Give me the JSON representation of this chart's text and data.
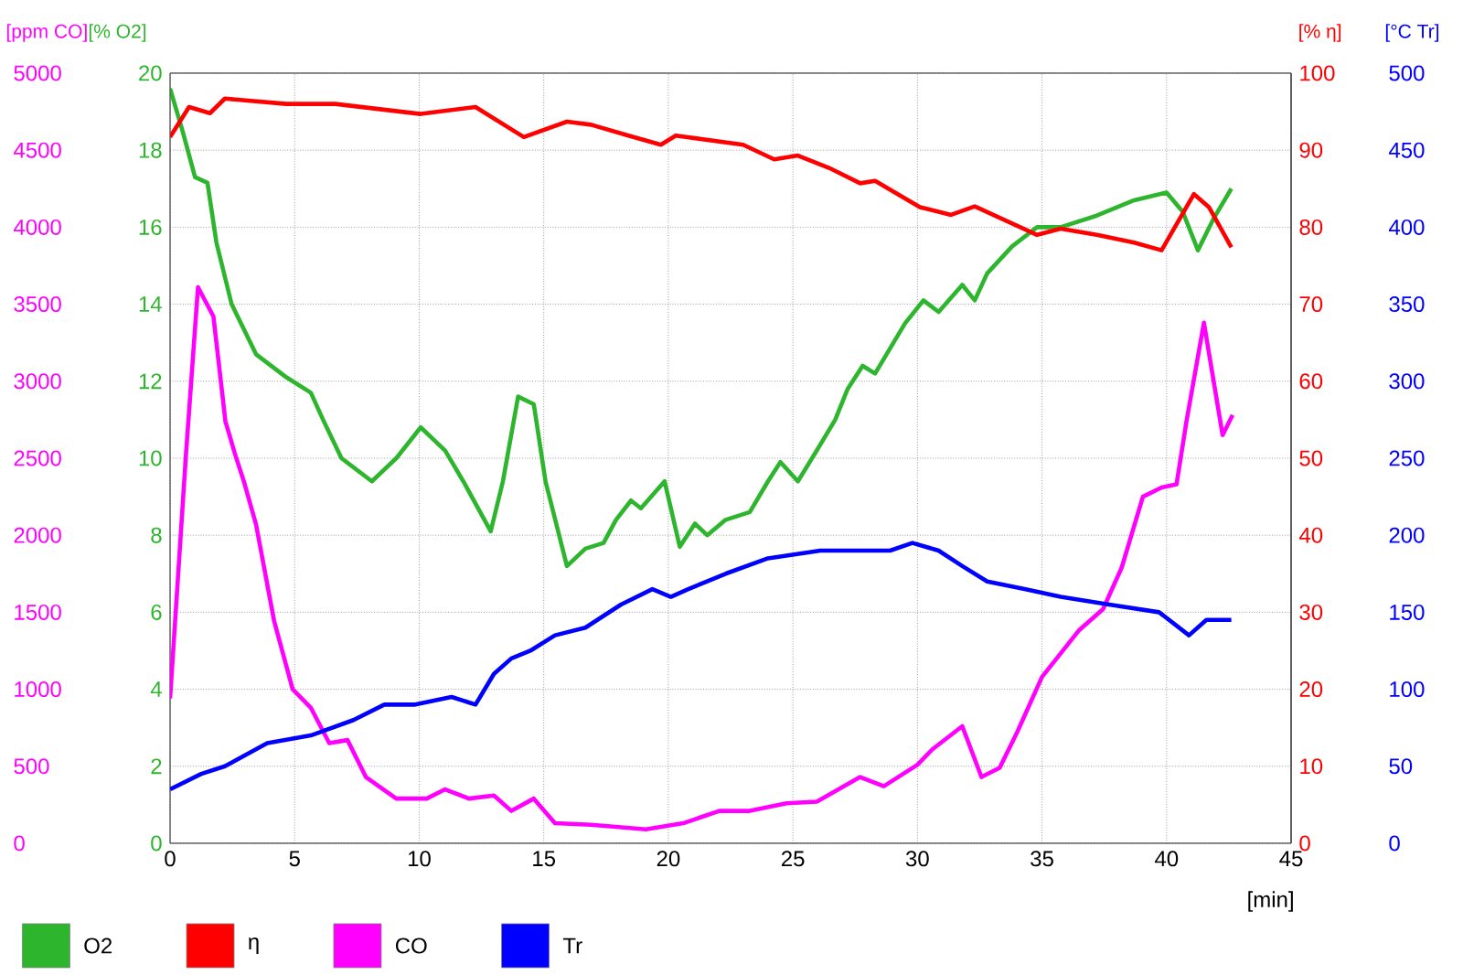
{
  "chart_data": [
    {
      "type": "line",
      "xlabel": "[min]",
      "ylabel": "[% O2]",
      "y2label": "[% η]",
      "xlim": [
        0,
        45
      ],
      "xticks": [
        0,
        5,
        10,
        15,
        20,
        25,
        30,
        35,
        40,
        45
      ],
      "ylim": [
        0,
        20
      ],
      "yticks": [
        0,
        2,
        4,
        6,
        8,
        10,
        12,
        14,
        16,
        18,
        20
      ],
      "y2lim": [
        0,
        100
      ],
      "y2ticks": [
        0,
        10,
        20,
        30,
        40,
        50,
        60,
        70,
        80,
        90,
        100
      ],
      "grid": true,
      "legend": "bottom",
      "series": [
        {
          "name": "O2",
          "color": "#2db52d",
          "x": [
            0,
            0.5,
            1.0,
            1.5,
            1.86,
            2.47,
            3.45,
            4.67,
            5.65,
            6.14,
            6.88,
            8.1,
            9.08,
            10.06,
            11.04,
            11.77,
            12.87,
            13.36,
            13.97,
            14.6,
            15.07,
            15.93,
            16.67,
            17.4,
            17.9,
            18.5,
            18.9,
            19.85,
            20.46,
            21.07,
            21.56,
            22.3,
            23.27,
            24.0,
            24.5,
            25.2,
            25.96,
            26.7,
            27.2,
            27.8,
            28.3,
            29.5,
            30.24,
            30.85,
            31.8,
            32.3,
            32.8,
            33.8,
            34.8,
            35.75,
            37.2,
            38.7,
            40.0,
            40.65,
            41.26,
            41.87,
            42.6
          ],
          "values": [
            19.6,
            18.5,
            17.3,
            17.15,
            15.6,
            14.0,
            12.7,
            12.1,
            11.7,
            11.0,
            10.0,
            9.4,
            10.0,
            10.8,
            10.2,
            9.4,
            8.1,
            9.4,
            11.6,
            11.4,
            9.4,
            7.2,
            7.65,
            7.8,
            8.4,
            8.9,
            8.7,
            9.4,
            7.7,
            8.3,
            8.0,
            8.4,
            8.6,
            9.4,
            9.9,
            9.4,
            10.2,
            11.0,
            11.8,
            12.4,
            12.2,
            13.5,
            14.1,
            13.8,
            14.5,
            14.1,
            14.8,
            15.5,
            16.0,
            16.0,
            16.3,
            16.7,
            16.9,
            16.4,
            15.4,
            16.2,
            17.0
          ]
        },
        {
          "name": "η",
          "color": "#ff0000",
          "axis": "y2",
          "x": [
            0,
            0.76,
            1.6,
            2.2,
            4.67,
            6.63,
            10.06,
            12.26,
            14.2,
            15.93,
            16.9,
            18.4,
            19.7,
            20.3,
            23.0,
            24.25,
            25.2,
            26.45,
            27.7,
            28.3,
            30.1,
            31.35,
            32.3,
            34.8,
            35.75,
            37.2,
            38.7,
            39.8,
            41.1,
            41.7,
            42.6
          ],
          "values": [
            91.7,
            95.6,
            94.8,
            96.7,
            96.0,
            96.0,
            94.7,
            95.6,
            91.7,
            93.7,
            93.3,
            91.9,
            90.7,
            91.9,
            90.7,
            88.8,
            89.3,
            87.7,
            85.7,
            86.0,
            82.6,
            81.6,
            82.7,
            79.0,
            79.8,
            79.0,
            78.0,
            77.0,
            84.3,
            82.6,
            77.4
          ]
        }
      ]
    },
    {
      "type": "line",
      "ylabel": "[ppm CO]",
      "y2label": "[°C Tr]",
      "xlim": [
        0,
        45
      ],
      "tick_labels": "y",
      "ylim": [
        0,
        5000
      ],
      "yticks": [
        0,
        500,
        1000,
        1500,
        2000,
        2500,
        3000,
        3500,
        4000,
        4500,
        5000
      ],
      "y2lim": [
        0,
        500
      ],
      "y2ticks": [
        0,
        50,
        100,
        150,
        200,
        250,
        300,
        350,
        400,
        450,
        500
      ],
      "legend": "bottom",
      "series": [
        {
          "name": "CO",
          "color": "#ff00ff",
          "x": [
            0,
            0.64,
            1.12,
            1.74,
            2.22,
            2.6,
            2.96,
            3.45,
            4.18,
            4.92,
            5.65,
            6.39,
            7.12,
            7.86,
            9.08,
            10.3,
            11.04,
            12.0,
            13.0,
            13.7,
            14.6,
            15.45,
            16.9,
            19.1,
            20.6,
            22.05,
            23.27,
            24.75,
            25.96,
            27.7,
            28.65,
            30.0,
            30.6,
            31.8,
            32.57,
            33.3,
            34.0,
            35.0,
            36.47,
            37.45,
            38.2,
            39.05,
            39.8,
            40.4,
            40.8,
            41.5,
            42.25,
            42.65
          ],
          "values": [
            940,
            2530,
            3610,
            3420,
            2740,
            2530,
            2350,
            2070,
            1440,
            1000,
            880,
            650,
            670,
            430,
            290,
            290,
            350,
            290,
            310,
            210,
            290,
            130,
            120,
            90,
            130,
            210,
            210,
            260,
            270,
            430,
            370,
            510,
            610,
            760,
            430,
            490,
            720,
            1080,
            1380,
            1520,
            1790,
            2250,
            2310,
            2330,
            2740,
            3380,
            2650,
            2780
          ]
        },
        {
          "name": "Tr",
          "color": "#0000ff",
          "axis": "y2",
          "x": [
            0,
            1.25,
            2.2,
            3.9,
            5.65,
            7.36,
            8.6,
            9.8,
            11.3,
            12.26,
            13.0,
            13.7,
            14.46,
            15.45,
            16.67,
            18.1,
            19.36,
            20.1,
            20.8,
            22.3,
            24.0,
            26.1,
            27.7,
            28.9,
            29.8,
            30.85,
            31.8,
            32.8,
            34.3,
            35.75,
            37.7,
            39.7,
            40.9,
            41.6,
            42.6
          ],
          "values": [
            35,
            45,
            50,
            65,
            70,
            80,
            90,
            90,
            95,
            90,
            110,
            120,
            125,
            135,
            140,
            155,
            165,
            160,
            165,
            175,
            185,
            190,
            190,
            190,
            195,
            190,
            180,
            170,
            165,
            160,
            155,
            150,
            135,
            145,
            145
          ]
        }
      ]
    }
  ]
}
